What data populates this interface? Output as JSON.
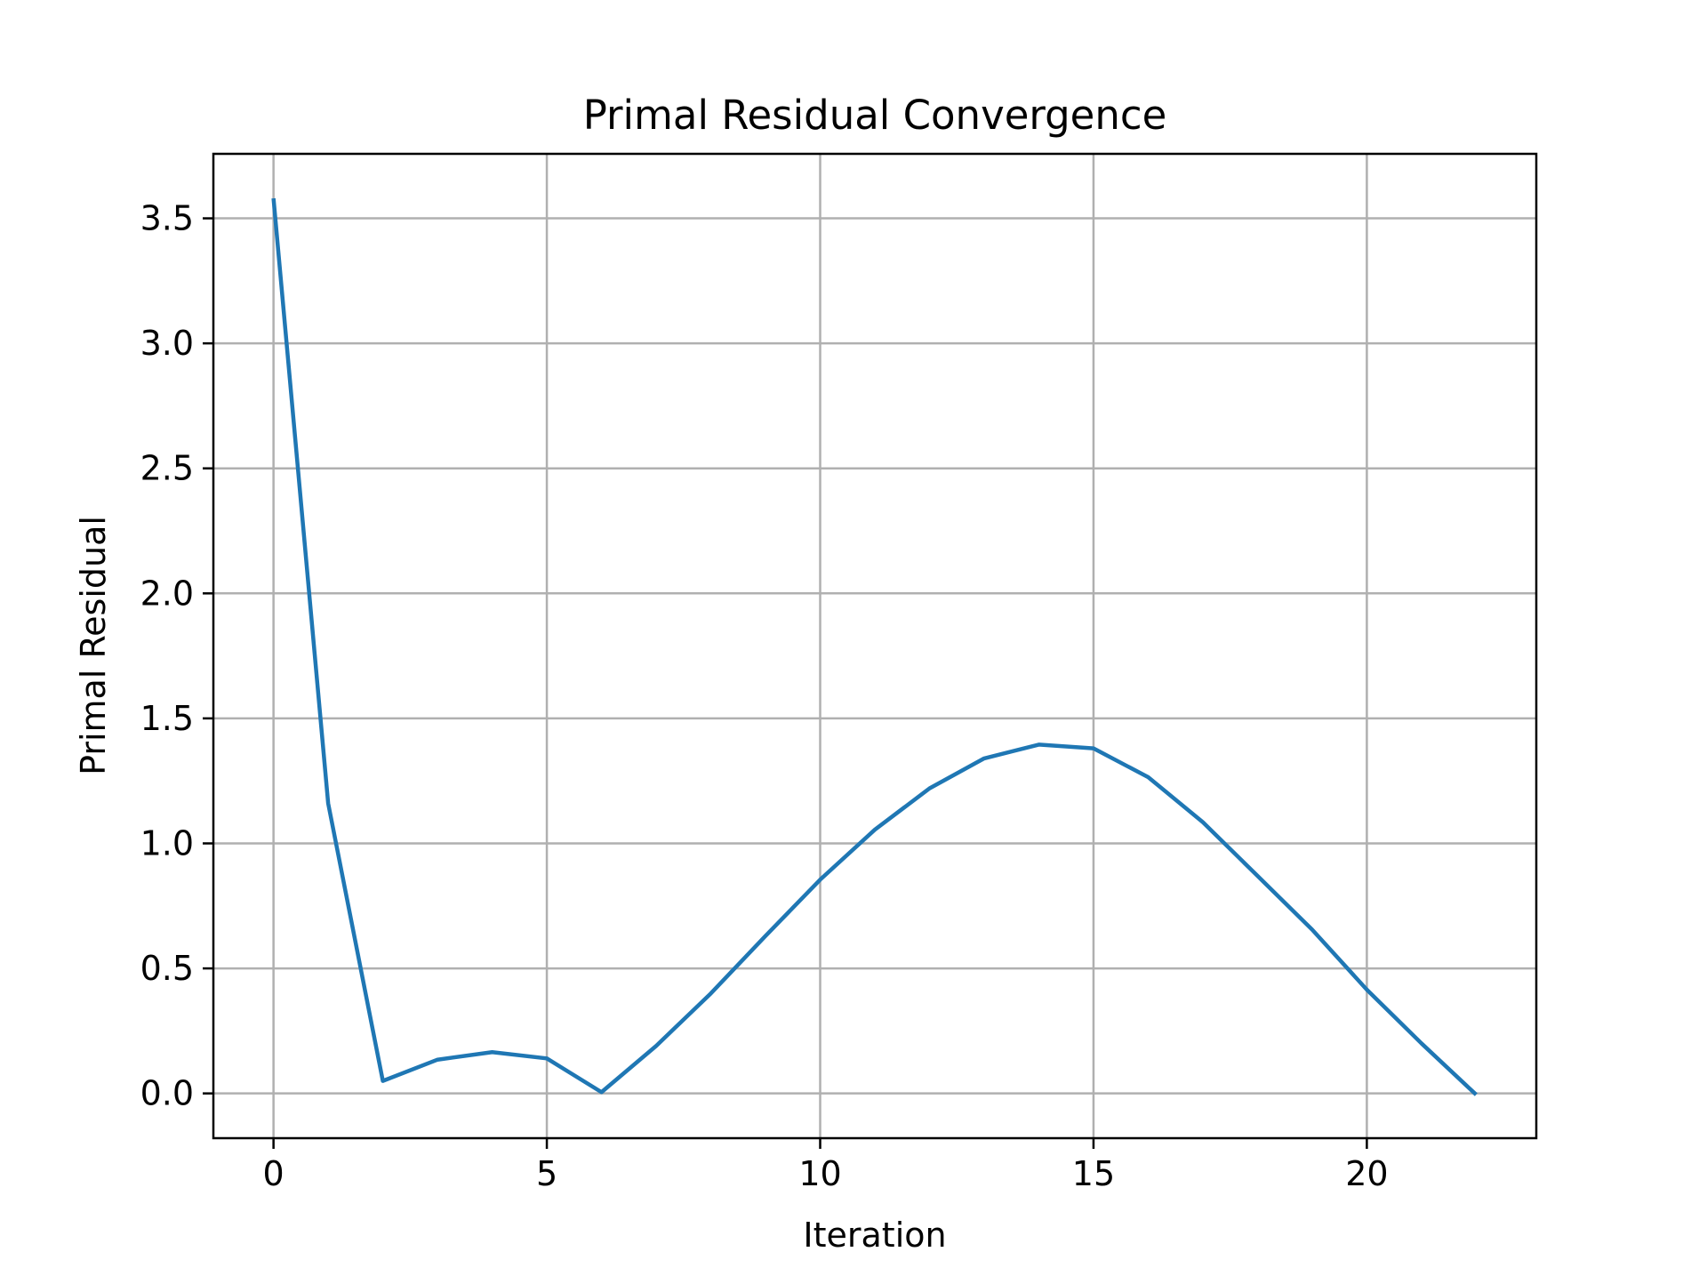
{
  "colors": {
    "line": "#1f77b4",
    "grid": "#b0b0b0",
    "axes": "#000000",
    "background": "#ffffff"
  },
  "chart_data": {
    "type": "line",
    "title": "Primal Residual Convergence",
    "xlabel": "Iteration",
    "ylabel": "Primal Residual",
    "xlim": [
      -1.1,
      23.1
    ],
    "ylim": [
      -0.179,
      3.758
    ],
    "grid": true,
    "legend": "none",
    "x_ticks": [
      0,
      5,
      10,
      15,
      20
    ],
    "x_tick_labels": [
      "0",
      "5",
      "10",
      "15",
      "20"
    ],
    "y_ticks": [
      0.0,
      0.5,
      1.0,
      1.5,
      2.0,
      2.5,
      3.0,
      3.5
    ],
    "y_tick_labels": [
      "0.0",
      "0.5",
      "1.0",
      "1.5",
      "2.0",
      "2.5",
      "3.0",
      "3.5"
    ],
    "series": [
      {
        "color": "#1f77b4",
        "x": [
          0,
          1,
          2,
          3,
          4,
          5,
          6,
          7,
          8,
          9,
          10,
          11,
          12,
          13,
          14,
          15,
          16,
          17,
          18,
          19,
          20,
          21,
          22
        ],
        "y": [
          3.58,
          1.16,
          0.05,
          0.135,
          0.165,
          0.14,
          0.005,
          0.19,
          0.4,
          0.63,
          0.855,
          1.055,
          1.22,
          1.34,
          1.395,
          1.38,
          1.265,
          1.085,
          0.87,
          0.655,
          0.415,
          0.2,
          -0.005
        ]
      }
    ]
  }
}
